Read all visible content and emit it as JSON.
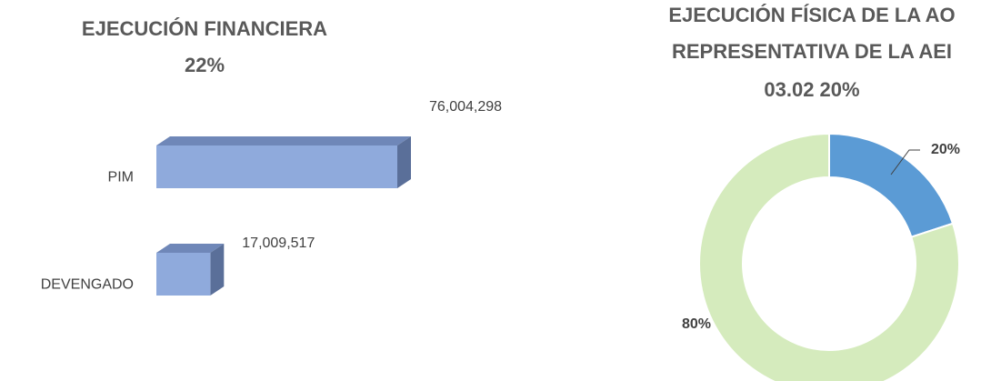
{
  "chart_data": [
    {
      "type": "bar",
      "title": "EJECUCIÓN FINANCIERA",
      "subtitle": "22%",
      "categories": [
        "PIM",
        "DEVENGADO"
      ],
      "values": [
        76004298,
        17009517
      ],
      "value_labels": [
        "76,004,298",
        "17,009,517"
      ],
      "color": "#8faadc"
    },
    {
      "type": "donut",
      "title_lines": [
        "EJECUCIÓN FÍSICA DE LA AO",
        "REPRESENTATIVA DE LA AEI",
        "03.02  20%"
      ],
      "values": [
        20,
        80
      ],
      "value_labels": [
        "20%",
        "80%"
      ],
      "colors": [
        "#5b9bd5",
        "#d5ebbd"
      ]
    }
  ]
}
